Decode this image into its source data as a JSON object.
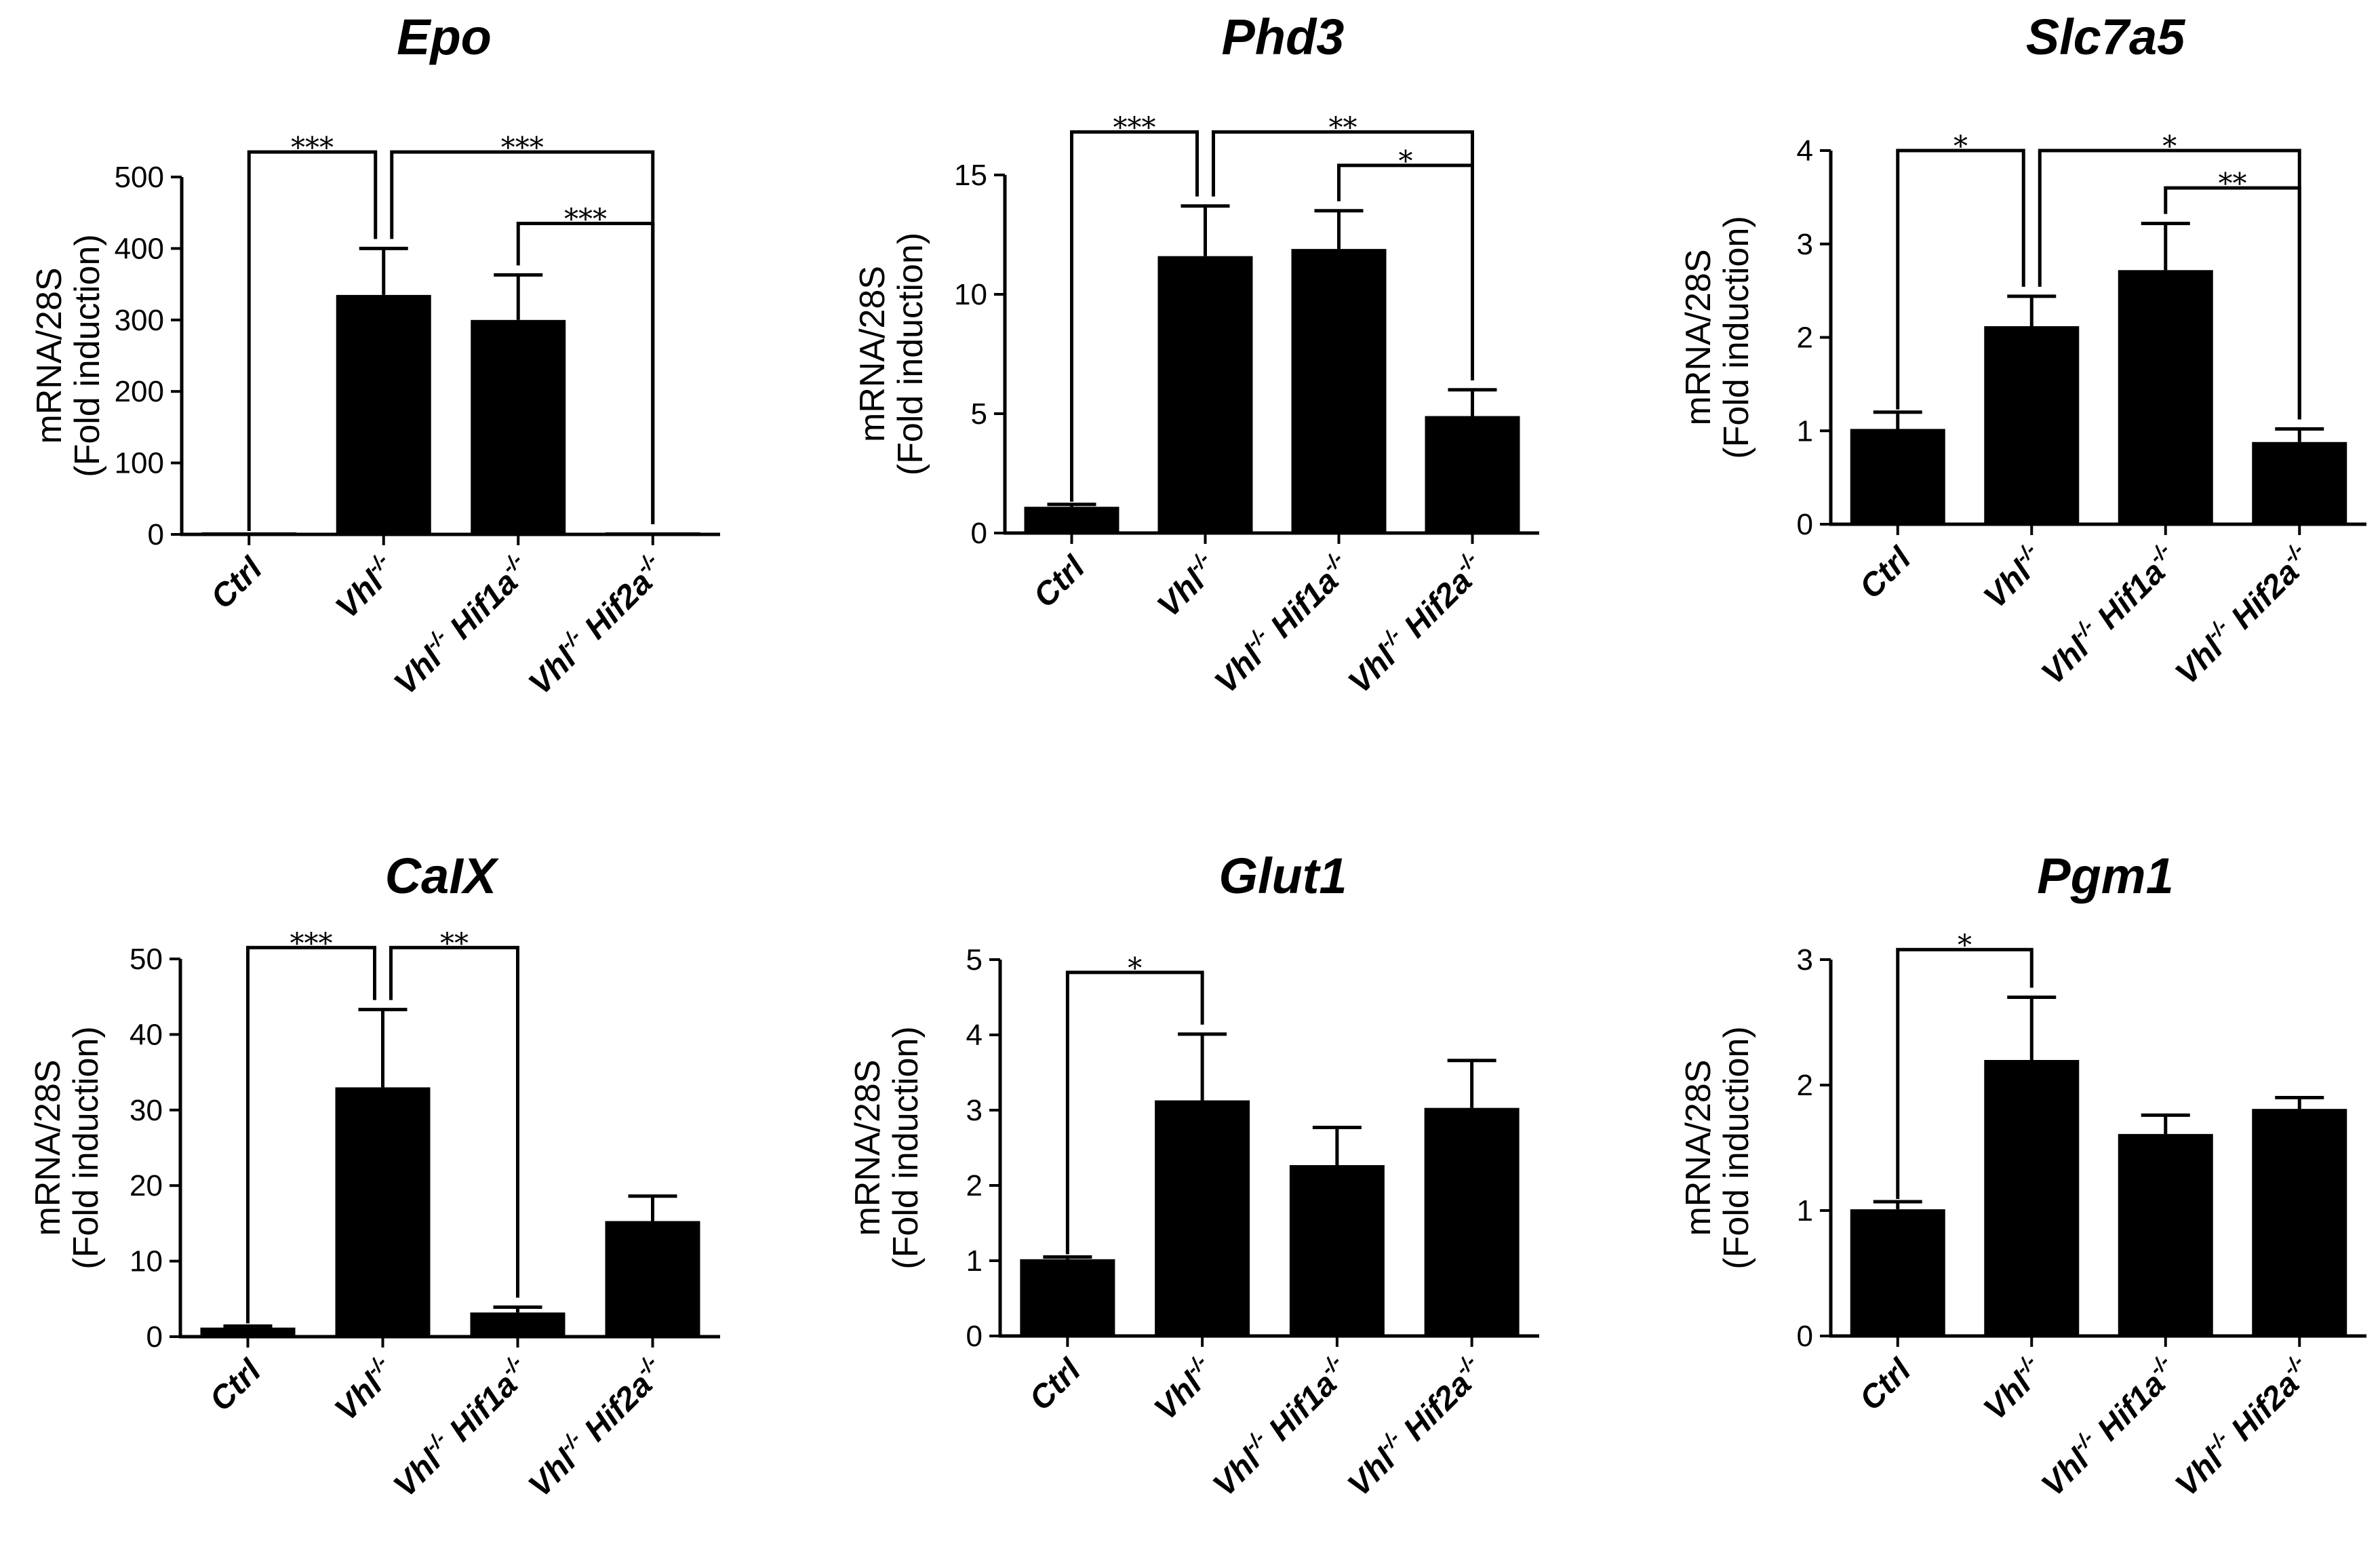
{
  "figure_title": "",
  "chart_data": [
    {
      "type": "bar",
      "title": "Epo",
      "ylabel_line1": "mRNA/28S",
      "ylabel_line2": "(Fold induction)",
      "ylim": [
        0,
        500
      ],
      "yticks": [
        0,
        100,
        200,
        300,
        400,
        500
      ],
      "categories": [
        {
          "base": "Ctrl",
          "parts": []
        },
        {
          "base": "Vhl",
          "parts": [
            {
              "sup": "-/-"
            }
          ]
        },
        {
          "base": "Vhl",
          "parts": [
            {
              "sup": "-/-"
            },
            {
              "text": " Hif1a"
            },
            {
              "sup": "-/-"
            }
          ]
        },
        {
          "base": "Vhl",
          "parts": [
            {
              "sup": "-/-"
            },
            {
              "text": " Hif2a"
            },
            {
              "sup": "-/-"
            }
          ]
        }
      ],
      "values": [
        1,
        335,
        300,
        1
      ],
      "errors": [
        0,
        65,
        63,
        0
      ],
      "significance": [
        {
          "from": 0,
          "to": 1,
          "label": "***",
          "y": 535
        },
        {
          "from": 1,
          "to": 3,
          "label": "***",
          "y": 535
        },
        {
          "from": 2,
          "to": 3,
          "label": "***",
          "y": 435
        }
      ]
    },
    {
      "type": "bar",
      "title": "Phd3",
      "ylabel_line1": "mRNA/28S",
      "ylabel_line2": "(Fold induction)",
      "ylim": [
        0,
        15
      ],
      "yticks": [
        0,
        5,
        10,
        15
      ],
      "categories": [
        {
          "base": "Ctrl",
          "parts": []
        },
        {
          "base": "Vhl",
          "parts": [
            {
              "sup": "-/-"
            }
          ]
        },
        {
          "base": "Vhl",
          "parts": [
            {
              "sup": "-/-"
            },
            {
              "text": " Hif1a"
            },
            {
              "sup": "-/-"
            }
          ]
        },
        {
          "base": "Vhl",
          "parts": [
            {
              "sup": "-/-"
            },
            {
              "text": " Hif2a"
            },
            {
              "sup": "-/-"
            }
          ]
        }
      ],
      "values": [
        1.1,
        11.6,
        11.9,
        4.9
      ],
      "errors": [
        0.1,
        2.1,
        1.6,
        1.1
      ],
      "significance": [
        {
          "from": 0,
          "to": 1,
          "label": "***",
          "y": 16.8
        },
        {
          "from": 1,
          "to": 3,
          "label": "**",
          "y": 16.8
        },
        {
          "from": 2,
          "to": 3,
          "label": "*",
          "y": 15.4
        }
      ]
    },
    {
      "type": "bar",
      "title": "Slc7a5",
      "ylabel_line1": "mRNA/28S",
      "ylabel_line2": "(Fold induction)",
      "ylim": [
        0,
        4
      ],
      "yticks": [
        0,
        1,
        2,
        3,
        4
      ],
      "categories": [
        {
          "base": "Ctrl",
          "parts": []
        },
        {
          "base": "Vhl",
          "parts": [
            {
              "sup": "-/-"
            }
          ]
        },
        {
          "base": "Vhl",
          "parts": [
            {
              "sup": "-/-"
            },
            {
              "text": " Hif1a"
            },
            {
              "sup": "-/-"
            }
          ]
        },
        {
          "base": "Vhl",
          "parts": [
            {
              "sup": "-/-"
            },
            {
              "text": " Hif2a"
            },
            {
              "sup": "-/-"
            }
          ]
        }
      ],
      "values": [
        1.02,
        2.12,
        2.72,
        0.88
      ],
      "errors": [
        0.18,
        0.32,
        0.5,
        0.14
      ],
      "significance": [
        {
          "from": 0,
          "to": 1,
          "label": "*",
          "y": 4.0
        },
        {
          "from": 1,
          "to": 3,
          "label": "*",
          "y": 4.0
        },
        {
          "from": 2,
          "to": 3,
          "label": "**",
          "y": 3.6
        }
      ]
    },
    {
      "type": "bar",
      "title": "CaIX",
      "ylabel_line1": "mRNA/28S",
      "ylabel_line2": "(Fold induction)",
      "ylim": [
        0,
        50
      ],
      "yticks": [
        0,
        10,
        20,
        30,
        40,
        50
      ],
      "categories": [
        {
          "base": "Ctrl",
          "parts": []
        },
        {
          "base": "Vhl",
          "parts": [
            {
              "sup": "-/-"
            }
          ]
        },
        {
          "base": "Vhl",
          "parts": [
            {
              "sup": "-/-"
            },
            {
              "text": " Hif1a"
            },
            {
              "sup": "-/-"
            }
          ]
        },
        {
          "base": "Vhl",
          "parts": [
            {
              "sup": "-/-"
            },
            {
              "text": " Hif2a"
            },
            {
              "sup": "-/-"
            }
          ]
        }
      ],
      "values": [
        1.2,
        33,
        3.2,
        15.3
      ],
      "errors": [
        0.2,
        10.3,
        0.7,
        3.3
      ],
      "significance": [
        {
          "from": 0,
          "to": 1,
          "label": "***",
          "y": 51.5
        },
        {
          "from": 1,
          "to": 2,
          "label": "**",
          "y": 51.5
        }
      ]
    },
    {
      "type": "bar",
      "title": "Glut1",
      "ylabel_line1": "mRNA/28S",
      "ylabel_line2": "(Fold induction)",
      "ylim": [
        0,
        5
      ],
      "yticks": [
        0,
        1,
        2,
        3,
        4,
        5
      ],
      "categories": [
        {
          "base": "Ctrl",
          "parts": []
        },
        {
          "base": "Vhl",
          "parts": [
            {
              "sup": "-/-"
            }
          ]
        },
        {
          "base": "Vhl",
          "parts": [
            {
              "sup": "-/-"
            },
            {
              "text": " Hif1a"
            },
            {
              "sup": "-/-"
            }
          ]
        },
        {
          "base": "Vhl",
          "parts": [
            {
              "sup": "-/-"
            },
            {
              "text": " Hif2a"
            },
            {
              "sup": "-/-"
            }
          ]
        }
      ],
      "values": [
        1.02,
        3.13,
        2.27,
        3.03
      ],
      "errors": [
        0.03,
        0.88,
        0.5,
        0.63
      ],
      "significance": [
        {
          "from": 0,
          "to": 1,
          "label": "*",
          "y": 4.83
        }
      ]
    },
    {
      "type": "bar",
      "title": "Pgm1",
      "ylabel_line1": "mRNA/28S",
      "ylabel_line2": "(Fold induction)",
      "ylim": [
        0,
        3
      ],
      "yticks": [
        0,
        1,
        2,
        3
      ],
      "categories": [
        {
          "base": "Ctrl",
          "parts": []
        },
        {
          "base": "Vhl",
          "parts": [
            {
              "sup": "-/-"
            }
          ]
        },
        {
          "base": "Vhl",
          "parts": [
            {
              "sup": "-/-"
            },
            {
              "text": " Hif1a"
            },
            {
              "sup": "-/-"
            }
          ]
        },
        {
          "base": "Vhl",
          "parts": [
            {
              "sup": "-/-"
            },
            {
              "text": " Hif2a"
            },
            {
              "sup": "-/-"
            }
          ]
        }
      ],
      "values": [
        1.01,
        2.2,
        1.61,
        1.81
      ],
      "errors": [
        0.06,
        0.5,
        0.15,
        0.09
      ],
      "significance": [
        {
          "from": 0,
          "to": 1,
          "label": "*",
          "y": 3.08
        }
      ]
    }
  ]
}
